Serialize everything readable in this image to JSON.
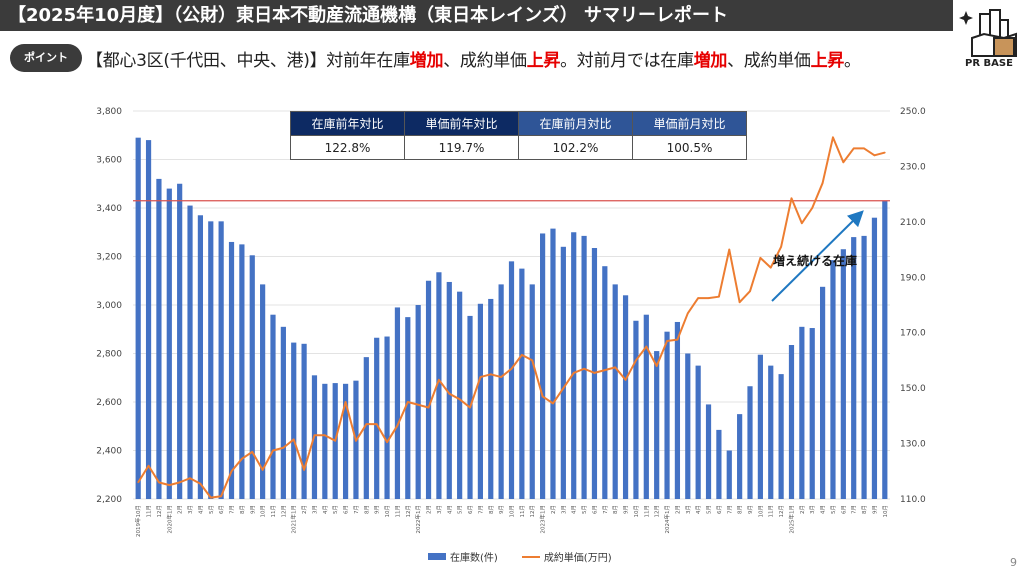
{
  "header": {
    "title": "【2025年10月度】（公財）東日本不動産流通機構（東日本レインズ） サマリーレポート"
  },
  "point": {
    "badge": "ポイント",
    "parts": [
      "【都心3区(千代田、中央、港)】対前年在庫",
      "増加",
      "、成約単価",
      "上昇",
      "。対前月では在庫",
      "増加",
      "、成約単価",
      "上昇",
      "。"
    ]
  },
  "logo": {
    "text": "PR BASE"
  },
  "summary_table": {
    "headers": [
      "在庫前年対比",
      "単価前年対比",
      "在庫前月対比",
      "単価前月対比"
    ],
    "values": [
      "122.8%",
      "119.7%",
      "102.2%",
      "100.5%"
    ]
  },
  "annotation": "増え続ける在庫",
  "page_number": "9",
  "colors": {
    "bar": "#4472c4",
    "line": "#ed7d31",
    "ref_line": "#d9534f",
    "header_bg": "#3b3b3b",
    "highlight": "#e60000"
  },
  "chart_data": {
    "type": "bar+line",
    "categories": [
      "2019年10月",
      "11月",
      "12月",
      "2020年1月",
      "2月",
      "3月",
      "4月",
      "5月",
      "6月",
      "7月",
      "8月",
      "9月",
      "10月",
      "11月",
      "12月",
      "2021年1月",
      "2月",
      "3月",
      "4月",
      "5月",
      "6月",
      "7月",
      "8月",
      "9月",
      "10月",
      "11月",
      "12月",
      "2022年1月",
      "2月",
      "3月",
      "4月",
      "5月",
      "6月",
      "7月",
      "8月",
      "9月",
      "10月",
      "11月",
      "12月",
      "2023年1月",
      "2月",
      "3月",
      "4月",
      "5月",
      "6月",
      "7月",
      "8月",
      "9月",
      "10月",
      "11月",
      "12月",
      "2024年1月",
      "2月",
      "3月",
      "4月",
      "5月",
      "6月",
      "7月",
      "8月",
      "9月",
      "10月",
      "11月",
      "12月",
      "2025年1月",
      "2月",
      "3月",
      "4月",
      "5月",
      "6月",
      "7月",
      "8月",
      "9月",
      "10月"
    ],
    "series": [
      {
        "name": "在庫数(件)",
        "type": "bar",
        "axis": "left",
        "values": [
          3690,
          3680,
          3520,
          3480,
          3500,
          3410,
          3370,
          3345,
          3345,
          3260,
          3250,
          3205,
          3085,
          2960,
          2910,
          2845,
          2840,
          2710,
          2675,
          2678,
          2675,
          2688,
          2785,
          2865,
          2870,
          2990,
          2950,
          3000,
          3100,
          3135,
          3095,
          3055,
          2955,
          3005,
          3025,
          3085,
          3180,
          3150,
          3085,
          3295,
          3315,
          3240,
          3300,
          3285,
          3235,
          3160,
          3085,
          3040,
          2935,
          2960,
          2810,
          2890,
          2930,
          2800,
          2750,
          2590,
          2485,
          2400,
          2550,
          2665,
          2795,
          2750,
          2715,
          2835,
          2910,
          2905,
          3075,
          3185,
          3230,
          3280,
          3285,
          3360,
          3430
        ]
      },
      {
        "name": "成約単価(万円)",
        "type": "line",
        "axis": "right",
        "values": [
          116,
          122,
          116,
          115,
          116,
          117.5,
          115.5,
          110.5,
          111,
          120,
          124.5,
          127,
          120.5,
          127.5,
          128.5,
          131.5,
          120.5,
          133,
          133,
          131,
          145,
          131,
          137,
          137,
          130.5,
          136.5,
          145,
          144,
          143,
          153,
          148,
          146,
          143,
          154,
          155,
          154,
          157,
          162,
          160,
          147,
          144.5,
          150,
          155.5,
          157,
          155.5,
          156.5,
          157.5,
          153,
          160,
          165,
          158,
          167,
          167.5,
          177,
          182.5,
          182.5,
          183,
          200,
          181,
          185,
          197,
          193.5,
          201,
          218.5,
          209.5,
          215,
          224,
          240.5,
          231.5,
          236.5,
          236.5,
          234,
          235
        ]
      }
    ],
    "reference_line": 3430,
    "y_left": {
      "min": 2200,
      "max": 3800,
      "ticks": [
        "2,200",
        "2,400",
        "2,600",
        "2,800",
        "3,000",
        "3,200",
        "3,400",
        "3,600",
        "3,800"
      ]
    },
    "y_right": {
      "min": 110,
      "max": 250,
      "ticks": [
        "110.0",
        "130.0",
        "150.0",
        "170.0",
        "190.0",
        "210.0",
        "230.0",
        "250.0"
      ]
    },
    "grid": true,
    "legend": "bottom"
  }
}
